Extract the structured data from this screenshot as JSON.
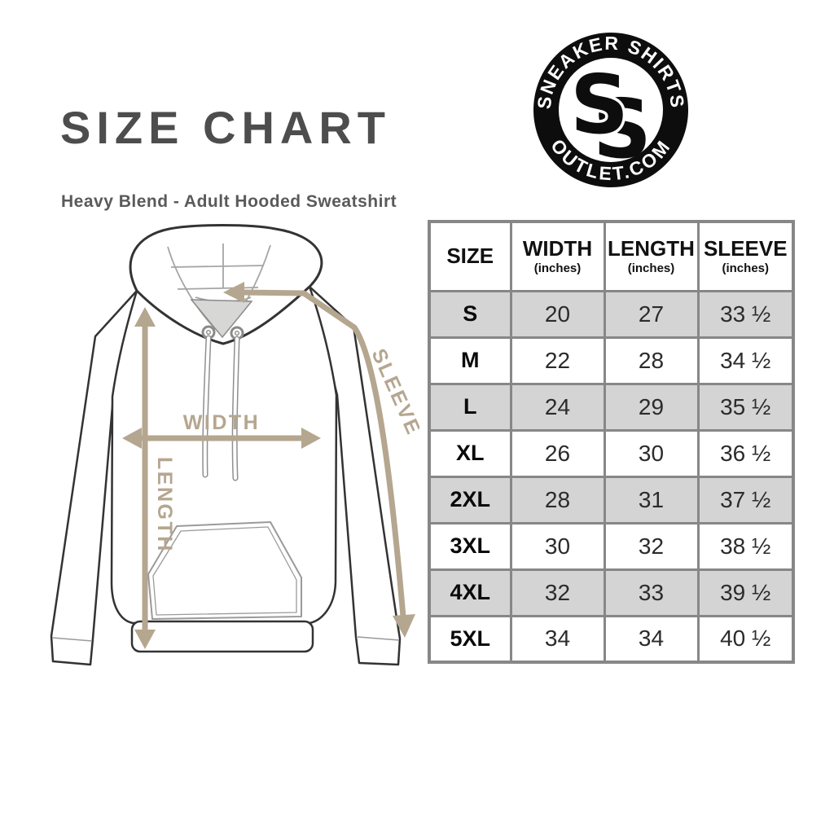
{
  "page": {
    "title": "SIZE CHART",
    "subtitle": "Heavy Blend - Adult Hooded Sweatshirt"
  },
  "logo": {
    "top_text": "SNEAKER SHIRTS",
    "bottom_text": "OUTLET.COM",
    "monogram_letter": "S"
  },
  "diagram": {
    "width_label": "WIDTH",
    "length_label": "LENGTH",
    "sleeve_label": "SLEEVE"
  },
  "table": {
    "headers": [
      {
        "label": "SIZE",
        "sub": ""
      },
      {
        "label": "WIDTH",
        "sub": "(inches)"
      },
      {
        "label": "LENGTH",
        "sub": "(inches)"
      },
      {
        "label": "SLEEVE",
        "sub": "(inches)"
      }
    ],
    "rows": [
      {
        "size": "S",
        "width": "20",
        "length": "27",
        "sleeve": "33 ½"
      },
      {
        "size": "M",
        "width": "22",
        "length": "28",
        "sleeve": "34 ½"
      },
      {
        "size": "L",
        "width": "24",
        "length": "29",
        "sleeve": "35 ½"
      },
      {
        "size": "XL",
        "width": "26",
        "length": "30",
        "sleeve": "36 ½"
      },
      {
        "size": "2XL",
        "width": "28",
        "length": "31",
        "sleeve": "37 ½"
      },
      {
        "size": "3XL",
        "width": "30",
        "length": "32",
        "sleeve": "38 ½"
      },
      {
        "size": "4XL",
        "width": "32",
        "length": "33",
        "sleeve": "39 ½"
      },
      {
        "size": "5XL",
        "width": "34",
        "length": "34",
        "sleeve": "40 ½"
      }
    ]
  },
  "colors": {
    "title_gray": "#4d4d4d",
    "measure_tan": "#b5a68f",
    "table_border": "#878787",
    "row_shade": "#d4d4d4",
    "outline_dark": "#333333",
    "logo_black": "#0d0d0d"
  }
}
